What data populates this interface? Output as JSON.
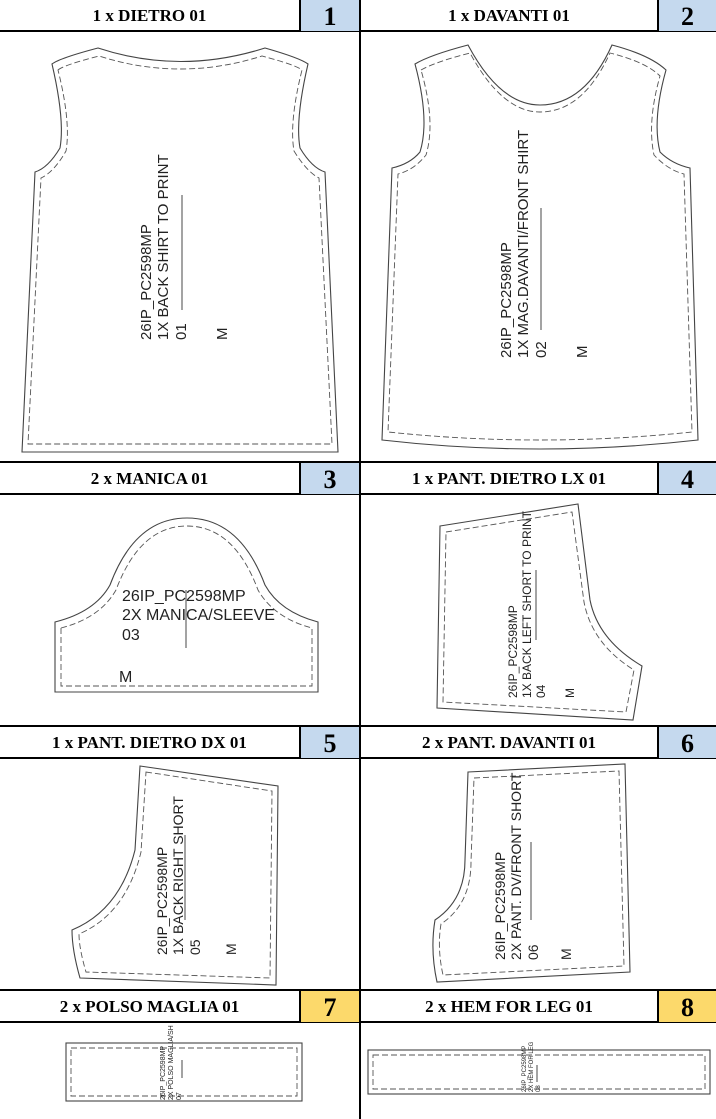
{
  "colors": {
    "blue_badge": "#c5d9ee",
    "yellow_badge": "#fcd96b"
  },
  "pieces": [
    {
      "title": "1 x DIETRO 01",
      "number": "1",
      "badge_color": "#c5d9ee",
      "label_lines": [
        "26IP_PC2598MP",
        "1X BACK SHIRT TO PRINT",
        "01"
      ],
      "size": "M"
    },
    {
      "title": "1 x DAVANTI 01",
      "number": "2",
      "badge_color": "#c5d9ee",
      "label_lines": [
        "26IP_PC2598MP",
        "1X MAG.DAVANTI/FRONT SHIRT",
        "02"
      ],
      "size": "M"
    },
    {
      "title": "2 x MANICA 01",
      "number": "3",
      "badge_color": "#c5d9ee",
      "label_lines": [
        "26IP_PC2598MP",
        "2X MANICA/SLEEVE",
        "03"
      ],
      "size": "M"
    },
    {
      "title": "1 x PANT. DIETRO LX 01",
      "number": "4",
      "badge_color": "#c5d9ee",
      "label_lines": [
        "26IP_PC2598MP",
        "1X BACK LEFT SHORT TO PRINT",
        "04"
      ],
      "size": "M"
    },
    {
      "title": "1 x PANT. DIETRO DX 01",
      "number": "5",
      "badge_color": "#c5d9ee",
      "label_lines": [
        "26IP_PC2598MP",
        "1X BACK RIGHT SHORT",
        "05"
      ],
      "size": "M"
    },
    {
      "title": "2 x PANT. DAVANTI 01",
      "number": "6",
      "badge_color": "#c5d9ee",
      "label_lines": [
        "26IP_PC2598MP",
        "2X PANT. DV/FRONT SHORT",
        "06"
      ],
      "size": "M"
    },
    {
      "title": "2 x POLSO MAGLIA 01",
      "number": "7",
      "badge_color": "#fcd96b",
      "label_lines": [
        "26IP_PC2598MP",
        "2X POLSO MAGLIA/SH",
        "07"
      ],
      "size": ""
    },
    {
      "title": "2 x HEM FOR LEG 01",
      "number": "8",
      "badge_color": "#fcd96b",
      "label_lines": [
        "26IP_PC2598MP",
        "2X HEM FOR LEG",
        "08"
      ],
      "size": ""
    }
  ]
}
